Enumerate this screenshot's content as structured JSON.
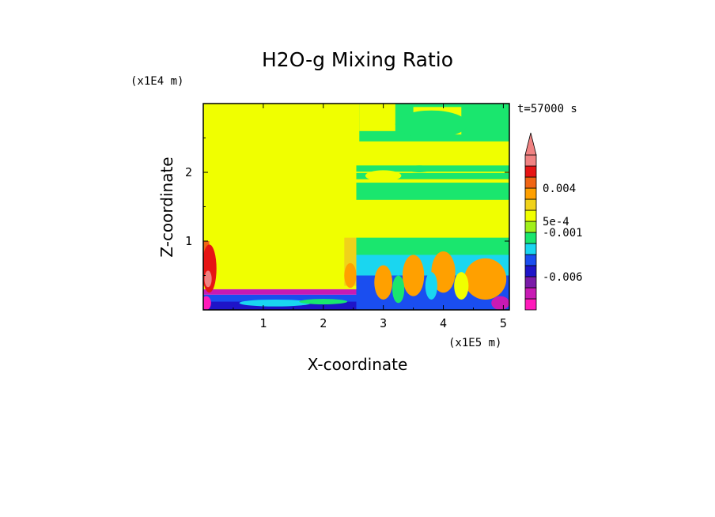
{
  "chart_data": {
    "type": "heatmap",
    "title": "H2O-g Mixing Ratio",
    "xlabel": "X-coordinate",
    "ylabel": "Z-coordinate",
    "x_unit": "(x1E5 m)",
    "y_unit": "(x1E4 m)",
    "time_label": "t=57000 s",
    "xlim": [
      0,
      5.1
    ],
    "ylim": [
      0,
      3.0
    ],
    "x_ticks": [
      {
        "v": 1,
        "label": "1"
      },
      {
        "v": 2,
        "label": "2"
      },
      {
        "v": 3,
        "label": "3"
      },
      {
        "v": 4,
        "label": "4"
      },
      {
        "v": 5,
        "label": "5"
      }
    ],
    "y_ticks": [
      {
        "v": 1,
        "label": "1"
      },
      {
        "v": 2,
        "label": "2"
      }
    ],
    "colorbar": {
      "colors": [
        "#ff1aba",
        "#c81ab4",
        "#7a1aa8",
        "#1e14c8",
        "#1a4ef0",
        "#1ad6f0",
        "#1ae66e",
        "#a0f01a",
        "#f0ff00",
        "#f0d21a",
        "#ffa000",
        "#f06414",
        "#e61414",
        "#f08282"
      ],
      "extend_top_color": "#f08282",
      "labels": [
        {
          "boundary": 3,
          "text": "-0.006"
        },
        {
          "boundary": 7,
          "text": "-0.001"
        },
        {
          "boundary": 8,
          "text": "5e-4"
        },
        {
          "boundary": 11,
          "text": "0.004"
        }
      ]
    },
    "regions": [
      {
        "x": [
          0,
          2.55
        ],
        "z": [
          0.3,
          3.0
        ],
        "color": "#f0ff00"
      },
      {
        "x": [
          2.55,
          5.1
        ],
        "z": [
          0,
          3.0
        ],
        "color": "#f0ff00"
      },
      {
        "x": [
          2.6,
          5.1
        ],
        "z": [
          2.45,
          3.0
        ],
        "color": "#1ae66e"
      },
      {
        "x": [
          2.6,
          3.2
        ],
        "z": [
          2.6,
          3.0
        ],
        "color": "#f0ff00"
      },
      {
        "x": [
          3.5,
          4.3
        ],
        "z": [
          2.55,
          2.95
        ],
        "color": "#f0ff00"
      },
      {
        "x": [
          2.55,
          5.1
        ],
        "z": [
          1.9,
          2.1
        ],
        "color": "#1ae66e"
      },
      {
        "x": [
          2.55,
          5.1
        ],
        "z": [
          1.99,
          2.01
        ],
        "color": "#f0ff00"
      },
      {
        "x": [
          2.55,
          5.1
        ],
        "z": [
          1.6,
          1.85
        ],
        "color": "#1ae66e"
      },
      {
        "x": [
          2.55,
          5.1
        ],
        "z": [
          0.75,
          1.05
        ],
        "color": "#1ae66e"
      },
      {
        "x": [
          2.55,
          5.1
        ],
        "z": [
          0.45,
          0.8
        ],
        "color": "#1ad6f0"
      },
      {
        "x": [
          2.55,
          5.1
        ],
        "z": [
          0.0,
          0.5
        ],
        "color": "#1a4ef0"
      },
      {
        "x": [
          0,
          2.55
        ],
        "z": [
          0.22,
          0.3
        ],
        "color": "#c81ab4"
      },
      {
        "x": [
          0,
          2.55
        ],
        "z": [
          0.0,
          0.22
        ],
        "color": "#1a4ef0"
      },
      {
        "x": [
          0,
          2.55
        ],
        "z": [
          0.0,
          0.12
        ],
        "color": "#1e14c8"
      },
      {
        "x": [
          0,
          0.1
        ],
        "z": [
          0.35,
          1.0
        ],
        "color": "#f06414"
      },
      {
        "x": [
          2.35,
          2.55
        ],
        "z": [
          0.35,
          1.05
        ],
        "color": "#f0d21a"
      }
    ],
    "blobs": [
      {
        "x": 0.1,
        "z": 0.6,
        "rx": 0.12,
        "rz": 0.35,
        "color": "#e61414"
      },
      {
        "x": 0.08,
        "z": 0.45,
        "rx": 0.06,
        "rz": 0.12,
        "color": "#f08282"
      },
      {
        "x": 2.45,
        "z": 0.5,
        "rx": 0.1,
        "rz": 0.18,
        "color": "#ffa000"
      },
      {
        "x": 3.0,
        "z": 0.4,
        "rx": 0.15,
        "rz": 0.25,
        "color": "#ffa000"
      },
      {
        "x": 3.5,
        "z": 0.5,
        "rx": 0.18,
        "rz": 0.3,
        "color": "#ffa000"
      },
      {
        "x": 4.0,
        "z": 0.55,
        "rx": 0.2,
        "rz": 0.3,
        "color": "#ffa000"
      },
      {
        "x": 4.7,
        "z": 0.45,
        "rx": 0.35,
        "rz": 0.3,
        "color": "#ffa000"
      },
      {
        "x": 4.3,
        "z": 0.35,
        "rx": 0.12,
        "rz": 0.2,
        "color": "#f0ff00"
      },
      {
        "x": 3.25,
        "z": 0.3,
        "rx": 0.1,
        "rz": 0.2,
        "color": "#1ae66e"
      },
      {
        "x": 3.8,
        "z": 0.35,
        "rx": 0.1,
        "rz": 0.2,
        "color": "#1ad6f0"
      },
      {
        "x": 1.2,
        "z": 0.1,
        "rx": 0.6,
        "rz": 0.05,
        "color": "#1ad6f0"
      },
      {
        "x": 2.0,
        "z": 0.12,
        "rx": 0.4,
        "rz": 0.04,
        "color": "#1ae66e"
      },
      {
        "x": 0.05,
        "z": 0.1,
        "rx": 0.08,
        "rz": 0.1,
        "color": "#ff1aba"
      },
      {
        "x": 4.95,
        "z": 0.1,
        "rx": 0.15,
        "rz": 0.1,
        "color": "#c81ab4"
      },
      {
        "x": 3.6,
        "z": 2.05,
        "rx": 0.2,
        "rz": 0.05,
        "color": "#1ae66e"
      },
      {
        "x": 3.8,
        "z": 2.7,
        "rx": 0.6,
        "rz": 0.2,
        "color": "#1ae66e"
      },
      {
        "x": 3.0,
        "z": 1.95,
        "rx": 0.3,
        "rz": 0.08,
        "color": "#f0ff00"
      }
    ]
  }
}
